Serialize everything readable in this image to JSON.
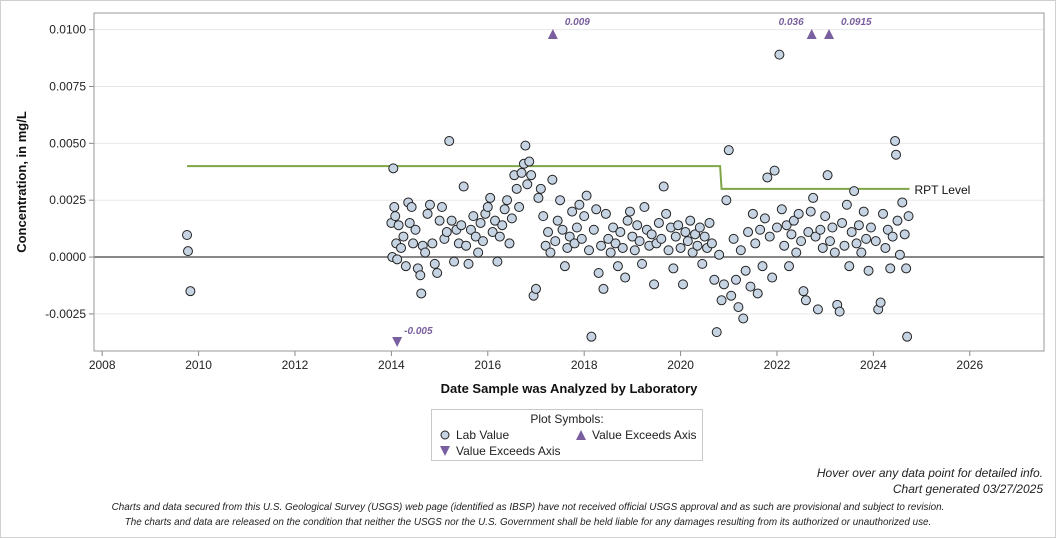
{
  "chart_data": {
    "type": "scatter",
    "xlabel": "Date Sample was Analyzed by Laboratory",
    "ylabel": "Concentration, in mg/L",
    "xlim": [
      2007.83,
      2027.54
    ],
    "ylim": [
      -0.00413,
      0.01073
    ],
    "x_ticks": [
      "2008",
      "2010",
      "2012",
      "2014",
      "2016",
      "2018",
      "2020",
      "2022",
      "2024",
      "2026"
    ],
    "y_ticks": [
      "0.0100",
      "0.0075",
      "0.0050",
      "0.0025",
      "0.0000",
      "-0.0025"
    ],
    "grid": "horizontal",
    "colors": {
      "point_fill": "#c6d3e3",
      "point_stroke": "#222222",
      "rpt_line": "#7fa545",
      "exceeds": "#7a5fa0",
      "zero_line": "#888888"
    },
    "rpt_level": {
      "label": "RPT Level",
      "segments": [
        {
          "x": [
            2009.76,
            2020.82
          ],
          "y": 0.004
        },
        {
          "x": [
            2020.85,
            2024.75
          ],
          "y": 0.003
        }
      ]
    },
    "exceeds_axis": [
      {
        "x": 2017.35,
        "direction": "up",
        "label": "0.009"
      },
      {
        "x": 2022.72,
        "direction": "up",
        "label": "0.036"
      },
      {
        "x": 2023.08,
        "direction": "up",
        "label": "0.0915"
      },
      {
        "x": 2014.12,
        "direction": "down",
        "label": "-0.005"
      }
    ],
    "points": [
      [
        2009.76,
        0.00097
      ],
      [
        2009.78,
        0.00026
      ],
      [
        2009.83,
        -0.0015
      ],
      [
        2014.0,
        0.0015
      ],
      [
        2014.02,
        0.0
      ],
      [
        2014.04,
        0.0039
      ],
      [
        2014.06,
        0.0022
      ],
      [
        2014.08,
        0.0018
      ],
      [
        2014.1,
        0.0006
      ],
      [
        2014.12,
        -0.0001
      ],
      [
        2014.15,
        0.0014
      ],
      [
        2014.2,
        0.0004
      ],
      [
        2014.25,
        0.0009
      ],
      [
        2014.3,
        -0.0004
      ],
      [
        2014.35,
        0.0024
      ],
      [
        2014.38,
        0.0015
      ],
      [
        2014.42,
        0.0022
      ],
      [
        2014.45,
        0.0006
      ],
      [
        2014.5,
        0.0012
      ],
      [
        2014.55,
        -0.0005
      ],
      [
        2014.6,
        -0.0008
      ],
      [
        2014.62,
        -0.0016
      ],
      [
        2014.65,
        0.0005
      ],
      [
        2014.7,
        0.0002
      ],
      [
        2014.75,
        0.0019
      ],
      [
        2014.8,
        0.0023
      ],
      [
        2014.85,
        0.0006
      ],
      [
        2014.9,
        -0.0003
      ],
      [
        2014.95,
        -0.0007
      ],
      [
        2015.0,
        0.0016
      ],
      [
        2015.05,
        0.0022
      ],
      [
        2015.1,
        0.0008
      ],
      [
        2015.15,
        0.0011
      ],
      [
        2015.2,
        0.0051
      ],
      [
        2015.25,
        0.0016
      ],
      [
        2015.3,
        -0.0002
      ],
      [
        2015.35,
        0.0012
      ],
      [
        2015.4,
        0.0006
      ],
      [
        2015.45,
        0.0014
      ],
      [
        2015.5,
        0.0031
      ],
      [
        2015.55,
        0.0005
      ],
      [
        2015.6,
        -0.0003
      ],
      [
        2015.65,
        0.0012
      ],
      [
        2015.7,
        0.0018
      ],
      [
        2015.75,
        0.0009
      ],
      [
        2015.8,
        0.0002
      ],
      [
        2015.85,
        0.0015
      ],
      [
        2015.9,
        0.0007
      ],
      [
        2015.95,
        0.0019
      ],
      [
        2016.0,
        0.0022
      ],
      [
        2016.05,
        0.0026
      ],
      [
        2016.1,
        0.0011
      ],
      [
        2016.15,
        0.0016
      ],
      [
        2016.2,
        -0.0002
      ],
      [
        2016.25,
        0.0009
      ],
      [
        2016.3,
        0.0014
      ],
      [
        2016.35,
        0.0021
      ],
      [
        2016.4,
        0.0025
      ],
      [
        2016.45,
        0.0006
      ],
      [
        2016.5,
        0.0017
      ],
      [
        2016.55,
        0.0036
      ],
      [
        2016.6,
        0.003
      ],
      [
        2016.65,
        0.0022
      ],
      [
        2016.7,
        0.0037
      ],
      [
        2016.75,
        0.0041
      ],
      [
        2016.78,
        0.0049
      ],
      [
        2016.82,
        0.0032
      ],
      [
        2016.86,
        0.0042
      ],
      [
        2016.9,
        0.0036
      ],
      [
        2016.95,
        -0.0017
      ],
      [
        2017.0,
        -0.0014
      ],
      [
        2017.05,
        0.0026
      ],
      [
        2017.1,
        0.003
      ],
      [
        2017.15,
        0.0018
      ],
      [
        2017.2,
        0.0005
      ],
      [
        2017.25,
        0.0011
      ],
      [
        2017.3,
        0.0002
      ],
      [
        2017.34,
        0.0034
      ],
      [
        2017.4,
        0.0007
      ],
      [
        2017.45,
        0.0016
      ],
      [
        2017.5,
        0.0025
      ],
      [
        2017.55,
        0.0012
      ],
      [
        2017.6,
        -0.0004
      ],
      [
        2017.65,
        0.0004
      ],
      [
        2017.7,
        0.0009
      ],
      [
        2017.75,
        0.002
      ],
      [
        2017.8,
        0.0006
      ],
      [
        2017.85,
        0.0013
      ],
      [
        2017.9,
        0.0023
      ],
      [
        2017.95,
        0.0008
      ],
      [
        2018.0,
        0.0018
      ],
      [
        2018.05,
        0.0027
      ],
      [
        2018.1,
        0.0003
      ],
      [
        2018.15,
        -0.0035
      ],
      [
        2018.2,
        0.0012
      ],
      [
        2018.25,
        0.0021
      ],
      [
        2018.3,
        -0.0007
      ],
      [
        2018.35,
        0.0005
      ],
      [
        2018.4,
        -0.0014
      ],
      [
        2018.45,
        0.0019
      ],
      [
        2018.5,
        0.0008
      ],
      [
        2018.55,
        0.0002
      ],
      [
        2018.6,
        0.0013
      ],
      [
        2018.65,
        0.0006
      ],
      [
        2018.7,
        -0.0004
      ],
      [
        2018.75,
        0.0011
      ],
      [
        2018.8,
        0.0004
      ],
      [
        2018.85,
        -0.0009
      ],
      [
        2018.9,
        0.0016
      ],
      [
        2018.95,
        0.002
      ],
      [
        2019.0,
        0.0009
      ],
      [
        2019.05,
        0.0003
      ],
      [
        2019.1,
        0.0014
      ],
      [
        2019.15,
        0.0007
      ],
      [
        2019.2,
        -0.0003
      ],
      [
        2019.25,
        0.0022
      ],
      [
        2019.3,
        0.0012
      ],
      [
        2019.35,
        0.0005
      ],
      [
        2019.4,
        0.001
      ],
      [
        2019.45,
        -0.0012
      ],
      [
        2019.5,
        0.0006
      ],
      [
        2019.55,
        0.0015
      ],
      [
        2019.6,
        0.0008
      ],
      [
        2019.65,
        0.0031
      ],
      [
        2019.7,
        0.0019
      ],
      [
        2019.75,
        0.0003
      ],
      [
        2019.8,
        0.0013
      ],
      [
        2019.85,
        -0.0005
      ],
      [
        2019.9,
        0.0009
      ],
      [
        2019.95,
        0.0014
      ],
      [
        2020.0,
        0.0004
      ],
      [
        2020.05,
        -0.0012
      ],
      [
        2020.1,
        0.0011
      ],
      [
        2020.15,
        0.0007
      ],
      [
        2020.2,
        0.0016
      ],
      [
        2020.25,
        0.0002
      ],
      [
        2020.3,
        0.001
      ],
      [
        2020.35,
        0.0005
      ],
      [
        2020.4,
        0.0013
      ],
      [
        2020.45,
        -0.0003
      ],
      [
        2020.5,
        0.0009
      ],
      [
        2020.55,
        0.0004
      ],
      [
        2020.6,
        0.0015
      ],
      [
        2020.65,
        0.0006
      ],
      [
        2020.7,
        -0.001
      ],
      [
        2020.75,
        -0.0033
      ],
      [
        2020.8,
        0.0001
      ],
      [
        2020.85,
        -0.0019
      ],
      [
        2020.9,
        -0.0012
      ],
      [
        2020.95,
        0.0025
      ],
      [
        2021.0,
        0.0047
      ],
      [
        2021.05,
        -0.0017
      ],
      [
        2021.1,
        0.0008
      ],
      [
        2021.15,
        -0.001
      ],
      [
        2021.2,
        -0.0022
      ],
      [
        2021.25,
        0.0003
      ],
      [
        2021.3,
        -0.0027
      ],
      [
        2021.35,
        -0.0006
      ],
      [
        2021.4,
        0.0011
      ],
      [
        2021.45,
        -0.0013
      ],
      [
        2021.5,
        0.0019
      ],
      [
        2021.55,
        0.0006
      ],
      [
        2021.6,
        -0.0016
      ],
      [
        2021.65,
        0.0012
      ],
      [
        2021.7,
        -0.0004
      ],
      [
        2021.75,
        0.0017
      ],
      [
        2021.8,
        0.0035
      ],
      [
        2021.85,
        0.0009
      ],
      [
        2021.9,
        -0.0009
      ],
      [
        2021.95,
        0.0038
      ],
      [
        2022.0,
        0.0013
      ],
      [
        2022.05,
        0.0089
      ],
      [
        2022.1,
        0.0021
      ],
      [
        2022.15,
        0.0005
      ],
      [
        2022.2,
        0.0014
      ],
      [
        2022.25,
        -0.0004
      ],
      [
        2022.3,
        0.001
      ],
      [
        2022.35,
        0.0016
      ],
      [
        2022.4,
        0.0002
      ],
      [
        2022.45,
        0.0019
      ],
      [
        2022.5,
        0.0007
      ],
      [
        2022.55,
        -0.0015
      ],
      [
        2022.6,
        -0.0019
      ],
      [
        2022.65,
        0.0011
      ],
      [
        2022.7,
        0.002
      ],
      [
        2022.75,
        0.0026
      ],
      [
        2022.8,
        0.0009
      ],
      [
        2022.85,
        -0.0023
      ],
      [
        2022.9,
        0.0012
      ],
      [
        2022.95,
        0.0004
      ],
      [
        2023.0,
        0.0018
      ],
      [
        2023.05,
        0.0036
      ],
      [
        2023.1,
        0.0007
      ],
      [
        2023.15,
        0.0013
      ],
      [
        2023.2,
        0.0002
      ],
      [
        2023.25,
        -0.0021
      ],
      [
        2023.3,
        -0.0024
      ],
      [
        2023.35,
        0.0015
      ],
      [
        2023.4,
        0.0005
      ],
      [
        2023.45,
        0.0023
      ],
      [
        2023.5,
        -0.0004
      ],
      [
        2023.55,
        0.0011
      ],
      [
        2023.6,
        0.0029
      ],
      [
        2023.65,
        0.0006
      ],
      [
        2023.7,
        0.0014
      ],
      [
        2023.75,
        0.0002
      ],
      [
        2023.8,
        0.002
      ],
      [
        2023.85,
        0.0008
      ],
      [
        2023.9,
        -0.0006
      ],
      [
        2023.95,
        0.0013
      ],
      [
        2024.05,
        0.0007
      ],
      [
        2024.1,
        -0.0023
      ],
      [
        2024.15,
        -0.002
      ],
      [
        2024.2,
        0.0019
      ],
      [
        2024.25,
        0.0004
      ],
      [
        2024.3,
        0.0012
      ],
      [
        2024.35,
        -0.0005
      ],
      [
        2024.4,
        0.0009
      ],
      [
        2024.45,
        0.0051
      ],
      [
        2024.47,
        0.0045
      ],
      [
        2024.5,
        0.0016
      ],
      [
        2024.55,
        0.0001
      ],
      [
        2024.6,
        0.0024
      ],
      [
        2024.65,
        0.001
      ],
      [
        2024.68,
        -0.0005
      ],
      [
        2024.7,
        -0.0035
      ],
      [
        2024.73,
        0.0018
      ]
    ],
    "legend": {
      "title": "Plot Symbols:",
      "placement": "bottom",
      "items": [
        "Lab Value",
        "Value Exceeds Axis",
        "Value Exceeds Axis"
      ]
    }
  },
  "notes": {
    "hover": "Hover over any data point for detailed info.",
    "generated": "Chart generated 03/27/2025"
  },
  "disclaimer": {
    "line1": "Charts and data secured from this U.S. Geological Survey (USGS) web page (identified as IBSP) have not received official USGS approval and as such are provisional and subject to revision.",
    "line2": "The charts and data are released on the condition that neither the USGS nor the U.S. Government shall be held liable for any damages resulting from its authorized or unauthorized use."
  }
}
